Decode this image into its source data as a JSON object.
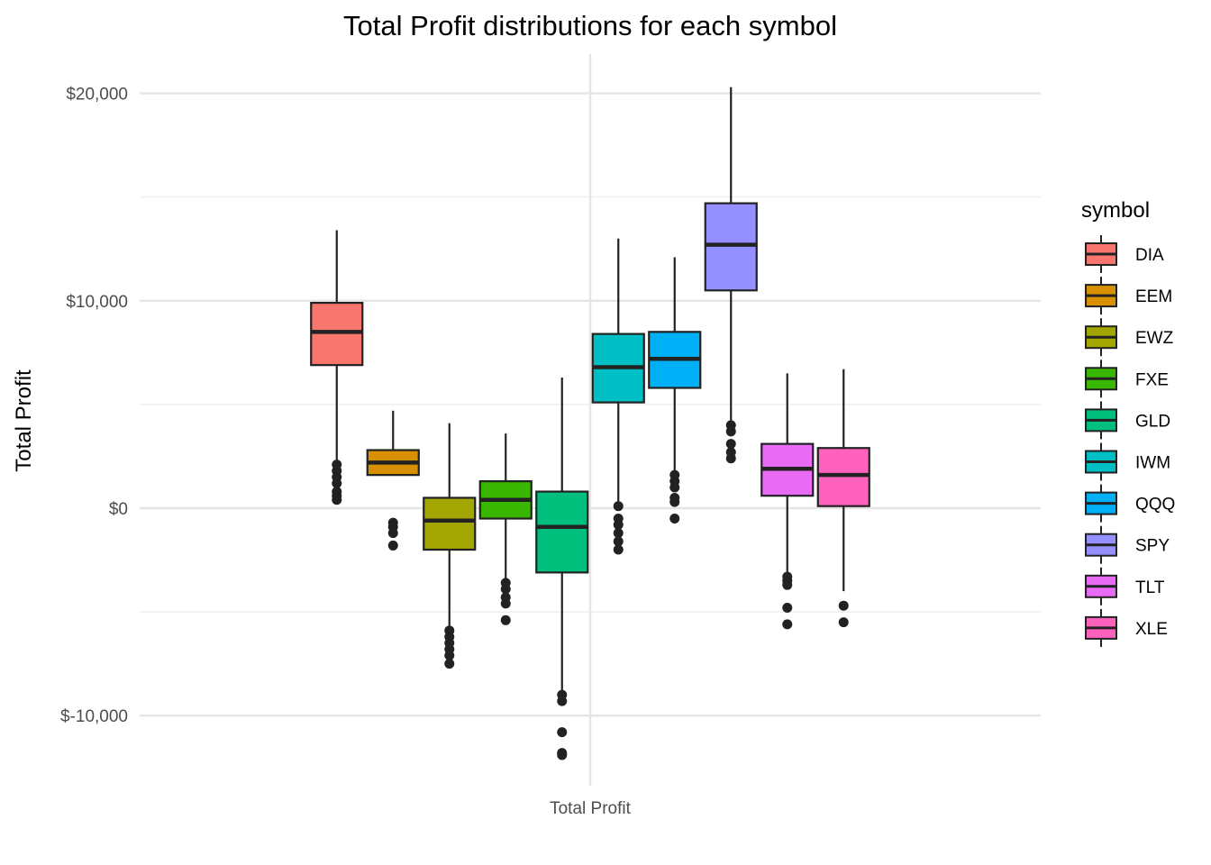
{
  "chart_data": {
    "type": "boxplot",
    "title": "Total Profit distributions for each symbol",
    "xlabel": "",
    "ylabel": "Total Profit",
    "categories": [
      "Total Profit"
    ],
    "ylim": [
      -13000,
      20500
    ],
    "y_ticks": [
      -10000,
      0,
      10000,
      20000
    ],
    "y_tick_labels": [
      "$-10,000",
      "$0",
      "$10,000",
      "$20,000"
    ],
    "grid": true,
    "legend": {
      "title": "symbol",
      "position": "right"
    },
    "series": [
      {
        "name": "DIA",
        "color": "#F8766D",
        "whisker_low": 500,
        "q1": 6900,
        "median": 8500,
        "q3": 9900,
        "whisker_high": 13400,
        "outliers": [
          400,
          600,
          800,
          1200,
          1500,
          1800,
          2100
        ]
      },
      {
        "name": "EEM",
        "color": "#D89000",
        "whisker_low": 1600,
        "q1": 1600,
        "median": 2200,
        "q3": 2800,
        "whisker_high": 4700,
        "outliers": [
          -700,
          -900,
          -1200,
          -1800
        ]
      },
      {
        "name": "EWZ",
        "color": "#A3A500",
        "whisker_low": -5800,
        "q1": -2000,
        "median": -600,
        "q3": 500,
        "whisker_high": 4100,
        "outliers": [
          -5900,
          -6200,
          -6500,
          -6800,
          -7100,
          -7500
        ]
      },
      {
        "name": "FXE",
        "color": "#39B600",
        "whisker_low": -3500,
        "q1": -500,
        "median": 400,
        "q3": 1300,
        "whisker_high": 3600,
        "outliers": [
          -3600,
          -3900,
          -4300,
          -4600,
          -5400
        ]
      },
      {
        "name": "GLD",
        "color": "#00BF7D",
        "whisker_low": -8800,
        "q1": -3100,
        "median": -900,
        "q3": 800,
        "whisker_high": 6300,
        "outliers": [
          -9000,
          -9300,
          -10800,
          -11800,
          -11900
        ]
      },
      {
        "name": "IWM",
        "color": "#00BFC4",
        "whisker_low": 200,
        "q1": 5100,
        "median": 6800,
        "q3": 8400,
        "whisker_high": 13000,
        "outliers": [
          100,
          -500,
          -800,
          -1200,
          -1600,
          -2000
        ]
      },
      {
        "name": "QQQ",
        "color": "#00B0F6",
        "whisker_low": 1700,
        "q1": 5800,
        "median": 7200,
        "q3": 8500,
        "whisker_high": 12100,
        "outliers": [
          1600,
          1300,
          1000,
          500,
          300,
          -500
        ]
      },
      {
        "name": "SPY",
        "color": "#9590FF",
        "whisker_low": 4100,
        "q1": 10500,
        "median": 12700,
        "q3": 14700,
        "whisker_high": 20300,
        "outliers": [
          4000,
          3700,
          3100,
          2700,
          2400
        ]
      },
      {
        "name": "TLT",
        "color": "#E76BF3",
        "whisker_low": -3200,
        "q1": 600,
        "median": 1900,
        "q3": 3100,
        "whisker_high": 6500,
        "outliers": [
          -3300,
          -3500,
          -3700,
          -4800,
          -5600
        ]
      },
      {
        "name": "XLE",
        "color": "#FF62BC",
        "whisker_low": -4000,
        "q1": 100,
        "median": 1600,
        "q3": 2900,
        "whisker_high": 6700,
        "outliers": [
          -4700,
          -5500
        ]
      }
    ]
  }
}
